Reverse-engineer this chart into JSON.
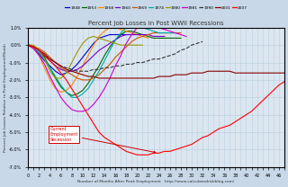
{
  "title": "Percent Job Losses in Post WWII Recessions",
  "xlabel": "Number of Months After Peak Employment   http://www.calculatedriskblog.com/",
  "ylabel": "Percent Job Losses Relative to Peak Employment/Month",
  "ylim": [
    -7.0,
    1.0
  ],
  "xlim": [
    0,
    47
  ],
  "yticks": [
    1.0,
    0.0,
    -1.0,
    -2.0,
    -3.0,
    -4.0,
    -5.0,
    -6.0,
    -7.0
  ],
  "background_color": "#dce6f0",
  "fig_background": "#c8d8e8",
  "grid_color": "#b8cfe0",
  "colors": {
    "1948": "#0000cc",
    "1953": "#006600",
    "1958": "#ff8800",
    "1960": "#7700cc",
    "1969": "#cc5500",
    "1974": "#00aaaa",
    "1980": "#999900",
    "1981": "#cc00cc",
    "1990": "#333333",
    "2001": "#880000",
    "2007": "#ff0000"
  },
  "linestyles": {
    "1948": "-",
    "1953": "-",
    "1958": "-",
    "1960": "-",
    "1969": "-",
    "1974": "-",
    "1980": "-",
    "1981": "-",
    "1990": "--",
    "2001": "-",
    "2007": "-"
  },
  "recession_data": {
    "1948": {
      "x": [
        0,
        1,
        2,
        3,
        4,
        5,
        6,
        7,
        8,
        9,
        10,
        11,
        12,
        13,
        14,
        15,
        16,
        17,
        18,
        19,
        20
      ],
      "y": [
        0,
        -0.2,
        -0.5,
        -0.9,
        -1.2,
        -1.5,
        -1.7,
        -1.6,
        -1.4,
        -1.1,
        -0.7,
        -0.3,
        0.1,
        0.4,
        0.5,
        0.6,
        0.6,
        0.6,
        0.6,
        0.6,
        0.6
      ]
    },
    "1953": {
      "x": [
        0,
        1,
        2,
        3,
        4,
        5,
        6,
        7,
        8,
        9,
        10,
        11,
        12,
        13,
        14,
        15,
        16,
        17,
        18,
        19,
        20,
        21,
        22,
        23,
        24,
        25,
        26,
        27,
        28
      ],
      "y": [
        0,
        -0.1,
        -0.3,
        -0.7,
        -1.3,
        -1.9,
        -2.4,
        -2.7,
        -2.9,
        -2.8,
        -2.6,
        -2.2,
        -1.7,
        -1.2,
        -0.6,
        -0.1,
        0.3,
        0.6,
        0.8,
        0.8,
        0.7,
        0.6,
        0.5,
        0.4,
        0.4,
        0.4,
        0.4,
        0.4,
        0.4
      ]
    },
    "1958": {
      "x": [
        0,
        1,
        2,
        3,
        4,
        5,
        6,
        7,
        8,
        9,
        10,
        11,
        12,
        13,
        14,
        15,
        16,
        17,
        18,
        19,
        20,
        21,
        22
      ],
      "y": [
        0,
        -0.2,
        -0.6,
        -1.3,
        -2.0,
        -2.5,
        -2.7,
        -2.6,
        -2.3,
        -1.8,
        -1.2,
        -0.6,
        0.0,
        0.5,
        0.8,
        1.0,
        1.0,
        0.9,
        0.8,
        0.7,
        0.6,
        0.5,
        0.4
      ]
    },
    "1960": {
      "x": [
        0,
        1,
        2,
        3,
        4,
        5,
        6,
        7,
        8,
        9,
        10,
        11,
        12,
        13,
        14,
        15,
        16,
        17,
        18,
        19,
        20,
        21,
        22,
        23,
        24,
        25
      ],
      "y": [
        0,
        -0.1,
        -0.3,
        -0.6,
        -0.9,
        -1.2,
        -1.4,
        -1.5,
        -1.5,
        -1.4,
        -1.2,
        -0.9,
        -0.6,
        -0.3,
        -0.1,
        0.1,
        0.3,
        0.5,
        0.6,
        0.6,
        0.6,
        0.6,
        0.6,
        0.5,
        0.5,
        0.5
      ]
    },
    "1969": {
      "x": [
        0,
        1,
        2,
        3,
        4,
        5,
        6,
        7,
        8,
        9,
        10,
        11,
        12,
        13,
        14,
        15,
        16,
        17,
        18,
        19,
        20,
        21,
        22,
        23,
        24,
        25,
        26,
        27,
        28
      ],
      "y": [
        0,
        -0.1,
        -0.2,
        -0.4,
        -0.7,
        -1.0,
        -1.3,
        -1.5,
        -1.7,
        -1.9,
        -2.0,
        -2.0,
        -1.9,
        -1.7,
        -1.4,
        -1.1,
        -0.7,
        -0.4,
        -0.1,
        0.2,
        0.4,
        0.5,
        0.6,
        0.7,
        0.7,
        0.7,
        0.7,
        0.7,
        0.7
      ]
    },
    "1974": {
      "x": [
        0,
        1,
        2,
        3,
        4,
        5,
        6,
        7,
        8,
        9,
        10,
        11,
        12,
        13,
        14,
        15,
        16,
        17,
        18,
        19,
        20,
        21,
        22,
        23,
        24,
        25,
        26,
        27
      ],
      "y": [
        0,
        -0.1,
        -0.4,
        -0.8,
        -1.3,
        -1.8,
        -2.3,
        -2.7,
        -3.0,
        -3.0,
        -2.8,
        -2.5,
        -2.0,
        -1.5,
        -0.9,
        -0.3,
        0.3,
        0.7,
        1.0,
        1.1,
        1.1,
        1.0,
        0.9,
        0.8,
        0.7,
        0.7,
        0.7,
        0.7
      ]
    },
    "1980": {
      "x": [
        0,
        1,
        2,
        3,
        4,
        5,
        6,
        7,
        8,
        9,
        10,
        11,
        12,
        13,
        14,
        15,
        16,
        17,
        18,
        19,
        20,
        21
      ],
      "y": [
        0,
        0.0,
        -0.3,
        -0.8,
        -1.5,
        -1.9,
        -1.9,
        -1.6,
        -1.0,
        -0.4,
        0.1,
        0.4,
        0.5,
        0.4,
        0.3,
        0.2,
        0.1,
        0.0,
        0.0,
        0.0,
        0.0,
        0.0
      ]
    },
    "1981": {
      "x": [
        0,
        1,
        2,
        3,
        4,
        5,
        6,
        7,
        8,
        9,
        10,
        11,
        12,
        13,
        14,
        15,
        16,
        17,
        18,
        19,
        20,
        21,
        22,
        23,
        24,
        25,
        26,
        27,
        28,
        29
      ],
      "y": [
        0,
        -0.2,
        -0.6,
        -1.1,
        -1.8,
        -2.4,
        -3.0,
        -3.4,
        -3.7,
        -3.8,
        -3.8,
        -3.7,
        -3.4,
        -3.0,
        -2.5,
        -1.9,
        -1.2,
        -0.6,
        0.1,
        0.6,
        1.0,
        1.1,
        1.2,
        1.1,
        1.0,
        0.9,
        0.8,
        0.7,
        0.6,
        0.5
      ]
    },
    "1990": {
      "x": [
        0,
        1,
        2,
        3,
        4,
        5,
        6,
        7,
        8,
        9,
        10,
        11,
        12,
        13,
        14,
        15,
        16,
        17,
        18,
        19,
        20,
        21,
        22,
        23,
        24,
        25,
        26,
        27,
        28,
        29,
        30,
        31,
        32
      ],
      "y": [
        0,
        -0.1,
        -0.3,
        -0.6,
        -0.8,
        -1.0,
        -1.2,
        -1.3,
        -1.4,
        -1.5,
        -1.5,
        -1.5,
        -1.4,
        -1.4,
        -1.3,
        -1.3,
        -1.2,
        -1.2,
        -1.1,
        -1.1,
        -1.0,
        -1.0,
        -0.9,
        -0.8,
        -0.8,
        -0.7,
        -0.6,
        -0.5,
        -0.3,
        -0.2,
        0.0,
        0.1,
        0.2
      ]
    },
    "2001": {
      "x": [
        0,
        1,
        2,
        3,
        4,
        5,
        6,
        7,
        8,
        9,
        10,
        11,
        12,
        13,
        14,
        15,
        16,
        17,
        18,
        19,
        20,
        21,
        22,
        23,
        24,
        25,
        26,
        27,
        28,
        29,
        30,
        31,
        32,
        33,
        34,
        35,
        36,
        37,
        38,
        39,
        40,
        41,
        42,
        43,
        44,
        45,
        46,
        47
      ],
      "y": [
        0,
        -0.1,
        -0.3,
        -0.5,
        -0.8,
        -1.0,
        -1.2,
        -1.4,
        -1.5,
        -1.6,
        -1.7,
        -1.8,
        -1.8,
        -1.9,
        -1.9,
        -1.9,
        -1.9,
        -1.9,
        -1.9,
        -1.9,
        -1.9,
        -1.9,
        -1.9,
        -1.9,
        -1.8,
        -1.8,
        -1.8,
        -1.7,
        -1.7,
        -1.7,
        -1.6,
        -1.6,
        -1.6,
        -1.5,
        -1.5,
        -1.5,
        -1.5,
        -1.5,
        -1.6,
        -1.6,
        -1.6,
        -1.6,
        -1.6,
        -1.6,
        -1.6,
        -1.6,
        -1.6,
        -1.6
      ]
    },
    "2007": {
      "x": [
        0,
        1,
        2,
        3,
        4,
        5,
        6,
        7,
        8,
        9,
        10,
        11,
        12,
        13,
        14,
        15,
        16,
        17,
        18,
        19,
        20,
        21,
        22,
        23,
        24,
        25,
        26,
        27,
        28,
        29,
        30,
        31,
        32,
        33,
        34,
        35,
        36,
        37,
        38,
        39,
        40,
        41,
        42,
        43,
        44,
        45,
        46,
        47
      ],
      "y": [
        0,
        -0.1,
        -0.3,
        -0.6,
        -0.9,
        -1.2,
        -1.6,
        -2.0,
        -2.5,
        -3.0,
        -3.5,
        -4.0,
        -4.5,
        -5.0,
        -5.3,
        -5.5,
        -5.7,
        -5.9,
        -6.1,
        -6.2,
        -6.3,
        -6.3,
        -6.3,
        -6.2,
        -6.2,
        -6.1,
        -6.1,
        -6.0,
        -5.9,
        -5.8,
        -5.7,
        -5.5,
        -5.3,
        -5.2,
        -5.0,
        -4.8,
        -4.7,
        -4.6,
        -4.4,
        -4.2,
        -4.0,
        -3.8,
        -3.5,
        -3.2,
        -2.9,
        -2.6,
        -2.3,
        -2.1
      ]
    }
  }
}
